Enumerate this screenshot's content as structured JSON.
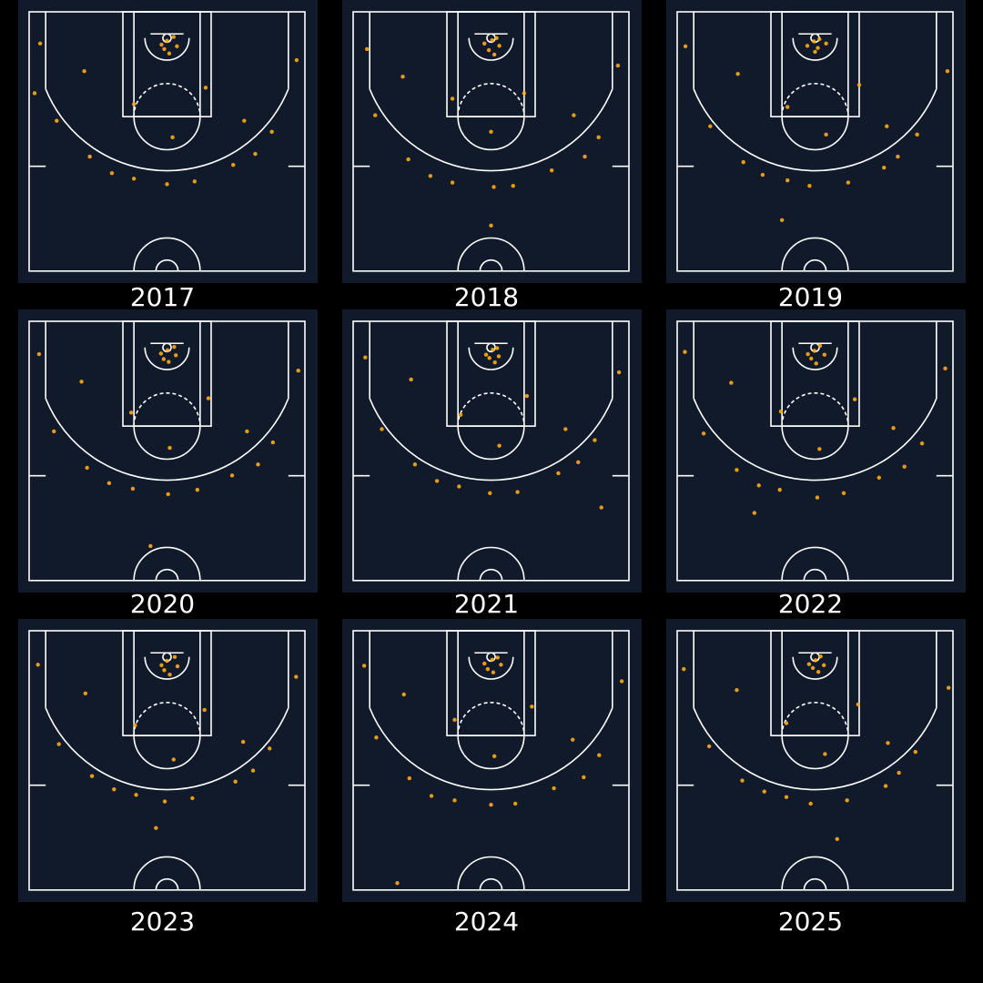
{
  "chart_data": [
    {
      "type": "scatter",
      "title": "2017",
      "color": "#ffaa14",
      "xlim": [
        -250,
        250
      ],
      "ylim": [
        -47.5,
        422.5
      ],
      "x": [
        0,
        -10,
        12,
        -5,
        18,
        4,
        -60,
        70,
        -150,
        140,
        10,
        -230,
        235,
        -200,
        190,
        -140,
        120,
        -60,
        50,
        0,
        -100,
        160,
        -240
      ],
      "y": [
        5,
        12,
        -2,
        20,
        15,
        28,
        120,
        90,
        60,
        150,
        180,
        10,
        40,
        150,
        170,
        215,
        230,
        255,
        260,
        265,
        245,
        210,
        100
      ]
    },
    {
      "type": "scatter",
      "title": "2018",
      "color": "#ffaa14",
      "xlim": [
        -250,
        250
      ],
      "ylim": [
        -47.5,
        422.5
      ],
      "x": [
        2,
        -12,
        10,
        -4,
        15,
        6,
        -70,
        60,
        -160,
        150,
        0,
        -225,
        230,
        -210,
        195,
        -150,
        110,
        -70,
        40,
        5,
        -110,
        170,
        0
      ],
      "y": [
        4,
        10,
        0,
        22,
        14,
        30,
        110,
        100,
        70,
        140,
        170,
        20,
        50,
        140,
        180,
        220,
        240,
        262,
        268,
        270,
        250,
        215,
        340
      ]
    },
    {
      "type": "scatter",
      "title": "2019",
      "color": "#ffaa14",
      "xlim": [
        -250,
        250
      ],
      "ylim": [
        -47.5,
        422.5
      ],
      "x": [
        -2,
        -14,
        8,
        5,
        20,
        0,
        -50,
        80,
        -140,
        130,
        20,
        -235,
        240,
        -190,
        185,
        -130,
        125,
        -50,
        60,
        -10,
        -95,
        150,
        -60
      ],
      "y": [
        6,
        14,
        2,
        18,
        10,
        25,
        125,
        85,
        65,
        160,
        175,
        15,
        60,
        160,
        175,
        225,
        235,
        258,
        262,
        268,
        248,
        215,
        330
      ]
    },
    {
      "type": "scatter",
      "title": "2020",
      "color": "#ffaa14",
      "xlim": [
        -250,
        250
      ],
      "ylim": [
        -47.5,
        422.5
      ],
      "x": [
        1,
        -11,
        13,
        -6,
        16,
        3,
        -65,
        75,
        -155,
        145,
        5,
        -232,
        238,
        -205,
        192,
        -145,
        118,
        -62,
        55,
        2,
        -105,
        165,
        -30
      ],
      "y": [
        5,
        11,
        -1,
        21,
        14,
        26,
        118,
        92,
        62,
        152,
        182,
        12,
        42,
        152,
        172,
        218,
        232,
        256,
        258,
        266,
        246,
        212,
        360
      ]
    },
    {
      "type": "scatter",
      "title": "2021",
      "color": "#ffaa14",
      "xlim": [
        -250,
        250
      ],
      "ylim": [
        -47.5,
        422.5
      ],
      "x": [
        3,
        -9,
        11,
        -3,
        14,
        7,
        -55,
        65,
        -145,
        135,
        15,
        -228,
        232,
        -198,
        188,
        -138,
        122,
        -58,
        48,
        -2,
        -98,
        158,
        200
      ],
      "y": [
        4,
        13,
        1,
        19,
        16,
        27,
        122,
        88,
        58,
        148,
        178,
        18,
        45,
        148,
        168,
        212,
        228,
        252,
        262,
        264,
        242,
        208,
        290
      ]
    },
    {
      "type": "scatter",
      "title": "2022",
      "color": "#ffaa14",
      "xlim": [
        -250,
        250
      ],
      "ylim": [
        -47.5,
        422.5
      ],
      "x": [
        -1,
        -13,
        9,
        -7,
        17,
        2,
        -62,
        72,
        -152,
        142,
        8,
        -236,
        236,
        -202,
        194,
        -142,
        116,
        -64,
        52,
        4,
        -102,
        162,
        -110
      ],
      "y": [
        6,
        12,
        -3,
        20,
        13,
        29,
        116,
        94,
        64,
        146,
        184,
        8,
        38,
        156,
        174,
        222,
        236,
        258,
        264,
        272,
        250,
        216,
        300
      ]
    },
    {
      "type": "scatter",
      "title": "2023",
      "color": "#ffaa14",
      "xlim": [
        -250,
        250
      ],
      "ylim": [
        -47.5,
        422.5
      ],
      "x": [
        0,
        -10,
        14,
        -5,
        19,
        5,
        -58,
        68,
        -148,
        138,
        12,
        -234,
        234,
        -196,
        186,
        -136,
        124,
        -56,
        46,
        -4,
        -96,
        156,
        -20
      ],
      "y": [
        7,
        15,
        0,
        24,
        17,
        32,
        124,
        96,
        66,
        154,
        186,
        14,
        36,
        158,
        166,
        216,
        226,
        250,
        256,
        262,
        240,
        206,
        310
      ]
    },
    {
      "type": "scatter",
      "title": "2024",
      "color": "#ffaa14",
      "xlim": [
        -250,
        250
      ],
      "ylim": [
        -47.5,
        422.5
      ],
      "x": [
        2,
        -12,
        12,
        -6,
        18,
        4,
        -66,
        74,
        -158,
        148,
        6,
        -230,
        237,
        -208,
        196,
        -148,
        114,
        -66,
        44,
        0,
        -108,
        168,
        -170
      ],
      "y": [
        5,
        12,
        1,
        22,
        14,
        28,
        114,
        90,
        68,
        150,
        180,
        16,
        44,
        146,
        178,
        220,
        238,
        260,
        266,
        268,
        252,
        218,
        410
      ]
    },
    {
      "type": "scatter",
      "title": "2025",
      "color": "#ffaa14",
      "xlim": [
        -250,
        250
      ],
      "ylim": [
        -47.5,
        422.5
      ],
      "x": [
        1,
        -11,
        10,
        -4,
        16,
        6,
        -52,
        78,
        -142,
        132,
        18,
        -238,
        242,
        -192,
        182,
        -132,
        128,
        -52,
        58,
        -8,
        -92,
        152,
        40
      ],
      "y": [
        6,
        13,
        -1,
        20,
        15,
        27,
        120,
        86,
        60,
        156,
        176,
        22,
        56,
        162,
        172,
        224,
        234,
        254,
        260,
        266,
        244,
        210,
        330
      ]
    }
  ]
}
